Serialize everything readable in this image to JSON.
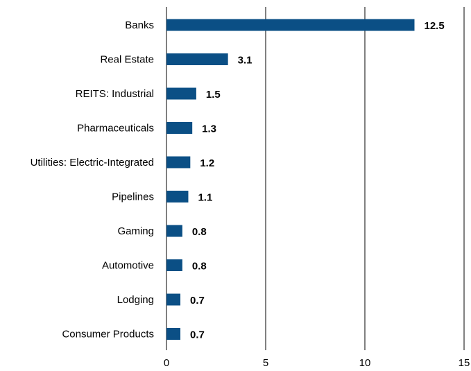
{
  "chart_data": {
    "type": "bar",
    "orientation": "horizontal",
    "categories": [
      "Banks",
      "Real Estate",
      "REITS: Industrial",
      "Pharmaceuticals",
      "Utilities: Electric-Integrated",
      "Pipelines",
      "Gaming",
      "Automotive",
      "Lodging",
      "Consumer Products"
    ],
    "values": [
      12.5,
      3.1,
      1.5,
      1.3,
      1.2,
      1.1,
      0.8,
      0.8,
      0.7,
      0.7
    ],
    "color": "#0b4f85",
    "xlim": [
      0,
      15
    ],
    "xticks": [
      0,
      5,
      10,
      15
    ],
    "grid": true
  }
}
